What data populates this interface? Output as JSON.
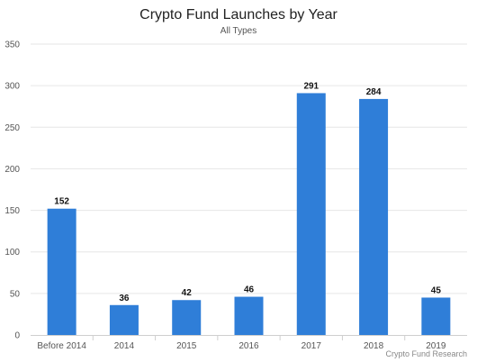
{
  "chart_data": {
    "type": "bar",
    "title": "Crypto Fund Launches by Year",
    "subtitle": "All Types",
    "categories": [
      "Before 2014",
      "2014",
      "2015",
      "2016",
      "2017",
      "2018",
      "2019"
    ],
    "values": [
      152,
      36,
      42,
      46,
      291,
      284,
      45
    ],
    "ylim": [
      0,
      350
    ],
    "yticks": [
      0,
      50,
      100,
      150,
      200,
      250,
      300,
      350
    ],
    "grid": true,
    "bar_color": "#2f7ed8",
    "data_labels": true,
    "legend": "none"
  },
  "credit": "Crypto Fund Research"
}
